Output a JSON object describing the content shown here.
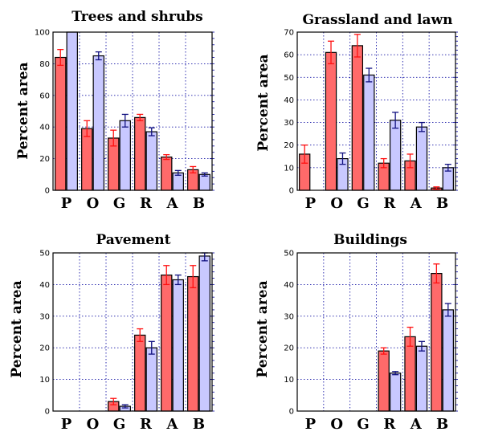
{
  "chart_data": [
    {
      "type": "bar",
      "title": "Trees and shrubs",
      "ylabel": "Percent area",
      "categories": [
        "P",
        "O",
        "G",
        "R",
        "A",
        "B"
      ],
      "ylim": [
        0,
        100
      ],
      "yticks": [
        0,
        20,
        40,
        60,
        80,
        100
      ],
      "grid": true,
      "series": [
        {
          "color": "#ff6a6a",
          "err_color": "#ff1010",
          "values": [
            84,
            39,
            33,
            46,
            21,
            13
          ],
          "errors": [
            5,
            5,
            5,
            2,
            1.5,
            2
          ]
        },
        {
          "color": "#c8c8ff",
          "err_color": "#101080",
          "values": [
            100,
            85,
            44,
            37,
            11,
            10
          ],
          "errors": [
            0,
            2.5,
            4,
            2.5,
            1.5,
            1
          ]
        }
      ]
    },
    {
      "type": "bar",
      "title": "Grassland and lawn",
      "ylabel": "Percent area",
      "categories": [
        "P",
        "O",
        "G",
        "R",
        "A",
        "B"
      ],
      "ylim": [
        0,
        70
      ],
      "yticks": [
        0,
        10,
        20,
        30,
        40,
        50,
        60,
        70
      ],
      "grid": true,
      "series": [
        {
          "color": "#ff6a6a",
          "err_color": "#ff1010",
          "values": [
            16,
            61,
            64,
            12,
            13,
            1
          ],
          "errors": [
            4,
            5,
            5,
            2,
            3,
            0.5
          ]
        },
        {
          "color": "#c8c8ff",
          "err_color": "#101080",
          "values": [
            0,
            14,
            51,
            31,
            28,
            10
          ],
          "errors": [
            0,
            2.5,
            3,
            3.5,
            2,
            1.5
          ]
        }
      ]
    },
    {
      "type": "bar",
      "title": "Pavement",
      "ylabel": "Percent area",
      "categories": [
        "P",
        "O",
        "G",
        "R",
        "A",
        "B"
      ],
      "ylim": [
        0,
        50
      ],
      "yticks": [
        0,
        10,
        20,
        30,
        40,
        50
      ],
      "grid": true,
      "series": [
        {
          "color": "#ff6a6a",
          "err_color": "#ff1010",
          "values": [
            0,
            0,
            3,
            24,
            43,
            42.5
          ],
          "errors": [
            0,
            0,
            1,
            2,
            3,
            3.5
          ]
        },
        {
          "color": "#c8c8ff",
          "err_color": "#101080",
          "values": [
            0,
            0,
            1.5,
            20,
            41.5,
            49
          ],
          "errors": [
            0,
            0,
            0.5,
            2,
            1.5,
            1.5
          ]
        }
      ]
    },
    {
      "type": "bar",
      "title": "Buildings",
      "ylabel": "Percent area",
      "categories": [
        "P",
        "O",
        "G",
        "R",
        "A",
        "B"
      ],
      "ylim": [
        0,
        50
      ],
      "yticks": [
        0,
        10,
        20,
        30,
        40,
        50
      ],
      "grid": true,
      "series": [
        {
          "color": "#ff6a6a",
          "err_color": "#ff1010",
          "values": [
            0,
            0,
            0,
            19,
            23.5,
            43.5
          ],
          "errors": [
            0,
            0,
            0,
            1,
            3,
            3
          ]
        },
        {
          "color": "#c8c8ff",
          "err_color": "#101080",
          "values": [
            0,
            0,
            0,
            12,
            20.5,
            32
          ],
          "errors": [
            0,
            0,
            0,
            0.5,
            1.5,
            2
          ]
        }
      ]
    }
  ]
}
